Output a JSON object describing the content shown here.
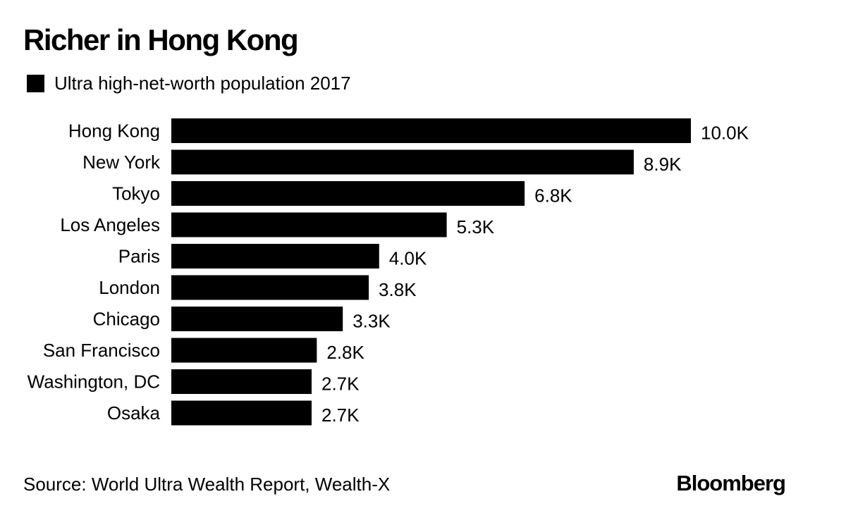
{
  "header": {
    "title": "Richer in Hong Kong"
  },
  "legend": {
    "label": "Ultra high-net-worth population 2017",
    "color": "#000000"
  },
  "footer": {
    "source": "Source: World Ultra Wealth Report, Wealth-X",
    "brand": "Bloomberg"
  },
  "chart_data": {
    "type": "bar",
    "orientation": "horizontal",
    "title": "Richer in Hong Kong",
    "categories": [
      "Hong Kong",
      "New York",
      "Tokyo",
      "Los Angeles",
      "Paris",
      "London",
      "Chicago",
      "San Francisco",
      "Washington, DC",
      "Osaka"
    ],
    "series": [
      {
        "name": "Ultra high-net-worth population 2017",
        "values": [
          10.0,
          8.9,
          6.8,
          5.3,
          4.0,
          3.8,
          3.3,
          2.8,
          2.7,
          2.7
        ],
        "labels": [
          "10.0K",
          "8.9K",
          "6.8K",
          "5.3K",
          "4.0K",
          "3.8K",
          "3.3K",
          "2.8K",
          "2.7K",
          "2.7K"
        ],
        "color": "#000000"
      }
    ],
    "xlabel": "",
    "ylabel": "",
    "xlim": [
      0,
      10
    ],
    "grid": false,
    "legend_position": "top-left"
  }
}
